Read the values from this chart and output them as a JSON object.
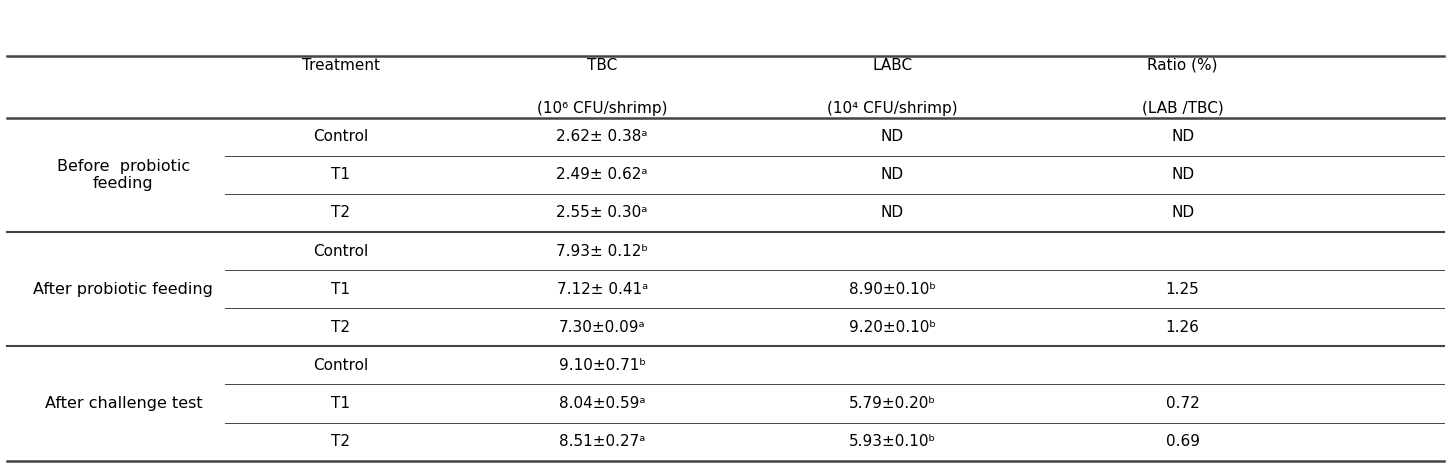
{
  "col_headers_line1": [
    "Treatment",
    "TBC",
    "LABC",
    "Ratio (%)"
  ],
  "col_headers_line2": [
    "",
    "(10⁶ CFU/shrimp)",
    "(10⁴ CFU/shrimp)",
    "(LAB /TBC)"
  ],
  "row_groups": [
    {
      "group_label": "Before  probiotic\nfeeding",
      "rows": [
        [
          "Control",
          "2.62± 0.38ᵃ",
          "ND",
          "ND"
        ],
        [
          "T1",
          "2.49± 0.62ᵃ",
          "ND",
          "ND"
        ],
        [
          "T2",
          "2.55± 0.30ᵃ",
          "ND",
          "ND"
        ]
      ]
    },
    {
      "group_label": "After probiotic feeding",
      "rows": [
        [
          "Control",
          "7.93± 0.12ᵇ",
          "",
          ""
        ],
        [
          "T1",
          "7.12± 0.41ᵃ",
          "8.90±0.10ᵇ",
          "1.25"
        ],
        [
          "T2",
          "7.30±0.09ᵃ",
          "9.20±0.10ᵇ",
          "1.26"
        ]
      ]
    },
    {
      "group_label": "After challenge test",
      "rows": [
        [
          "Control",
          "9.10±0.71ᵇ",
          "",
          ""
        ],
        [
          "T1",
          "8.04±0.59ᵃ",
          "5.79±0.20ᵇ",
          "0.72"
        ],
        [
          "T2",
          "8.51±0.27ᵃ",
          "5.93±0.10ᵇ",
          "0.69"
        ]
      ]
    }
  ],
  "background_color": "#ffffff",
  "line_color": "#444444",
  "text_color": "#000000",
  "header_fontsize": 11.0,
  "cell_fontsize": 11.0,
  "group_fontsize": 11.5
}
